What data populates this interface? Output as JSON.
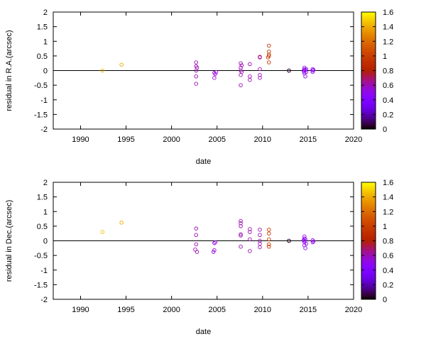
{
  "chart_data": [
    {
      "type": "scatter",
      "xlabel": "date",
      "ylabel": "residual in R.A.(arcsec)",
      "xlim": [
        1987,
        2020
      ],
      "ylim": [
        -2,
        2
      ],
      "x_ticks": [
        "1990",
        "1995",
        "2000",
        "2005",
        "2010",
        "2015",
        "2020"
      ],
      "y_ticks": [
        "-2",
        "-1.5",
        "-1",
        "-0.5",
        "0",
        "0.5",
        "1",
        "1.5",
        "2"
      ],
      "colorbar": {
        "min": 0,
        "max": 1.6,
        "ticks": [
          "0",
          "0.2",
          "0.4",
          "0.6",
          "0.8",
          "1",
          "1.2",
          "1.4",
          "1.6"
        ]
      },
      "zero_line": true,
      "points": [
        {
          "x": 1992.4,
          "y": 0.0,
          "c": 1.45
        },
        {
          "x": 1994.5,
          "y": 0.2,
          "c": 1.4
        },
        {
          "x": 2002.7,
          "y": 0.28,
          "c": 0.6
        },
        {
          "x": 2002.7,
          "y": 0.15,
          "c": 0.6
        },
        {
          "x": 2002.7,
          "y": 0.0,
          "c": 0.6
        },
        {
          "x": 2002.7,
          "y": -0.2,
          "c": 0.6
        },
        {
          "x": 2002.7,
          "y": -0.45,
          "c": 0.6
        },
        {
          "x": 2002.8,
          "y": 0.1,
          "c": 0.6
        },
        {
          "x": 2004.7,
          "y": -0.08,
          "c": 0.55
        },
        {
          "x": 2004.7,
          "y": -0.25,
          "c": 0.55
        },
        {
          "x": 2004.8,
          "y": -0.12,
          "c": 0.55
        },
        {
          "x": 2004.9,
          "y": -0.05,
          "c": 0.55
        },
        {
          "x": 2007.6,
          "y": 0.25,
          "c": 0.6
        },
        {
          "x": 2007.6,
          "y": 0.1,
          "c": 0.6
        },
        {
          "x": 2007.6,
          "y": 0.0,
          "c": 0.6
        },
        {
          "x": 2007.6,
          "y": -0.15,
          "c": 0.6
        },
        {
          "x": 2007.6,
          "y": -0.5,
          "c": 0.6
        },
        {
          "x": 2007.7,
          "y": 0.18,
          "c": 0.6
        },
        {
          "x": 2007.7,
          "y": -0.05,
          "c": 0.6
        },
        {
          "x": 2008.6,
          "y": 0.22,
          "c": 0.6
        },
        {
          "x": 2008.6,
          "y": -0.2,
          "c": 0.6
        },
        {
          "x": 2008.6,
          "y": -0.32,
          "c": 0.6
        },
        {
          "x": 2009.7,
          "y": 0.47,
          "c": 0.75
        },
        {
          "x": 2009.7,
          "y": 0.45,
          "c": 0.6
        },
        {
          "x": 2009.7,
          "y": 0.05,
          "c": 0.6
        },
        {
          "x": 2009.7,
          "y": -0.15,
          "c": 0.6
        },
        {
          "x": 2009.7,
          "y": -0.25,
          "c": 0.6
        },
        {
          "x": 2010.7,
          "y": 0.85,
          "c": 0.95
        },
        {
          "x": 2010.7,
          "y": 0.65,
          "c": 0.95
        },
        {
          "x": 2010.7,
          "y": 0.55,
          "c": 0.95
        },
        {
          "x": 2010.7,
          "y": 0.5,
          "c": 0.95
        },
        {
          "x": 2010.6,
          "y": 0.45,
          "c": 0.95
        },
        {
          "x": 2010.7,
          "y": 0.28,
          "c": 0.95
        },
        {
          "x": 2012.9,
          "y": 0.0,
          "c": 0.05
        },
        {
          "x": 2012.9,
          "y": 0.0,
          "c": 0.05
        },
        {
          "x": 2014.6,
          "y": 0.1,
          "c": 0.5
        },
        {
          "x": 2014.6,
          "y": 0.05,
          "c": 0.5
        },
        {
          "x": 2014.6,
          "y": 0.0,
          "c": 0.5
        },
        {
          "x": 2014.6,
          "y": -0.05,
          "c": 0.5
        },
        {
          "x": 2014.6,
          "y": -0.1,
          "c": 0.5
        },
        {
          "x": 2014.7,
          "y": -0.2,
          "c": 0.5
        },
        {
          "x": 2014.7,
          "y": 0.02,
          "c": 0.5
        },
        {
          "x": 2014.8,
          "y": -0.05,
          "c": 0.5
        },
        {
          "x": 2014.8,
          "y": 0.05,
          "c": 0.5
        },
        {
          "x": 2014.5,
          "y": 0.0,
          "c": 0.5
        },
        {
          "x": 2015.5,
          "y": 0.05,
          "c": 0.5
        },
        {
          "x": 2015.5,
          "y": 0.0,
          "c": 0.5
        },
        {
          "x": 2015.5,
          "y": -0.05,
          "c": 0.5
        },
        {
          "x": 2015.6,
          "y": 0.02,
          "c": 0.5
        }
      ]
    },
    {
      "type": "scatter",
      "xlabel": "date",
      "ylabel": "residual in Dec.(arcsec)",
      "xlim": [
        1987,
        2020
      ],
      "ylim": [
        -2,
        2
      ],
      "x_ticks": [
        "1990",
        "1995",
        "2000",
        "2005",
        "2010",
        "2015",
        "2020"
      ],
      "y_ticks": [
        "-2",
        "-1.5",
        "-1",
        "-0.5",
        "0",
        "0.5",
        "1",
        "1.5",
        "2"
      ],
      "colorbar": {
        "min": 0,
        "max": 1.6,
        "ticks": [
          "0",
          "0.2",
          "0.4",
          "0.6",
          "0.8",
          "1",
          "1.2",
          "1.4",
          "1.6"
        ]
      },
      "zero_line": true,
      "points": [
        {
          "x": 1992.4,
          "y": 0.3,
          "c": 1.45
        },
        {
          "x": 1994.5,
          "y": 0.62,
          "c": 1.4
        },
        {
          "x": 2002.7,
          "y": 0.42,
          "c": 0.6
        },
        {
          "x": 2002.7,
          "y": 0.2,
          "c": 0.6
        },
        {
          "x": 2002.7,
          "y": -0.12,
          "c": 0.6
        },
        {
          "x": 2002.6,
          "y": -0.3,
          "c": 0.6
        },
        {
          "x": 2002.8,
          "y": -0.38,
          "c": 0.6
        },
        {
          "x": 2004.7,
          "y": -0.08,
          "c": 0.55
        },
        {
          "x": 2004.7,
          "y": -0.32,
          "c": 0.55
        },
        {
          "x": 2004.6,
          "y": -0.38,
          "c": 0.55
        },
        {
          "x": 2004.8,
          "y": -0.05,
          "c": 0.55
        },
        {
          "x": 2007.6,
          "y": 0.68,
          "c": 0.6
        },
        {
          "x": 2007.6,
          "y": 0.6,
          "c": 0.6
        },
        {
          "x": 2007.6,
          "y": 0.5,
          "c": 0.6
        },
        {
          "x": 2007.6,
          "y": 0.22,
          "c": 0.6
        },
        {
          "x": 2007.6,
          "y": 0.18,
          "c": 0.6
        },
        {
          "x": 2007.6,
          "y": -0.2,
          "c": 0.6
        },
        {
          "x": 2008.6,
          "y": 0.4,
          "c": 0.6
        },
        {
          "x": 2008.6,
          "y": 0.3,
          "c": 0.6
        },
        {
          "x": 2008.6,
          "y": 0.05,
          "c": 0.6
        },
        {
          "x": 2008.6,
          "y": -0.35,
          "c": 0.6
        },
        {
          "x": 2009.7,
          "y": 0.38,
          "c": 0.6
        },
        {
          "x": 2009.7,
          "y": 0.2,
          "c": 0.6
        },
        {
          "x": 2009.7,
          "y": 0.0,
          "c": 0.6
        },
        {
          "x": 2009.7,
          "y": -0.1,
          "c": 0.6
        },
        {
          "x": 2009.7,
          "y": -0.22,
          "c": 0.6
        },
        {
          "x": 2010.7,
          "y": 0.38,
          "c": 0.95
        },
        {
          "x": 2010.7,
          "y": 0.25,
          "c": 0.95
        },
        {
          "x": 2010.7,
          "y": 0.05,
          "c": 0.95
        },
        {
          "x": 2010.7,
          "y": -0.12,
          "c": 0.95
        },
        {
          "x": 2010.7,
          "y": -0.2,
          "c": 0.95
        },
        {
          "x": 2012.9,
          "y": 0.0,
          "c": 0.05
        },
        {
          "x": 2012.9,
          "y": 0.0,
          "c": 0.05
        },
        {
          "x": 2014.6,
          "y": 0.15,
          "c": 0.5
        },
        {
          "x": 2014.6,
          "y": 0.08,
          "c": 0.5
        },
        {
          "x": 2014.6,
          "y": 0.0,
          "c": 0.5
        },
        {
          "x": 2014.6,
          "y": -0.05,
          "c": 0.5
        },
        {
          "x": 2014.6,
          "y": -0.15,
          "c": 0.5
        },
        {
          "x": 2014.7,
          "y": -0.25,
          "c": 0.5
        },
        {
          "x": 2014.7,
          "y": 0.05,
          "c": 0.5
        },
        {
          "x": 2014.8,
          "y": -0.1,
          "c": 0.5
        },
        {
          "x": 2014.5,
          "y": 0.02,
          "c": 0.5
        },
        {
          "x": 2015.5,
          "y": 0.02,
          "c": 0.5
        },
        {
          "x": 2015.5,
          "y": -0.05,
          "c": 0.5
        },
        {
          "x": 2015.6,
          "y": -0.02,
          "c": 0.5
        }
      ]
    }
  ]
}
